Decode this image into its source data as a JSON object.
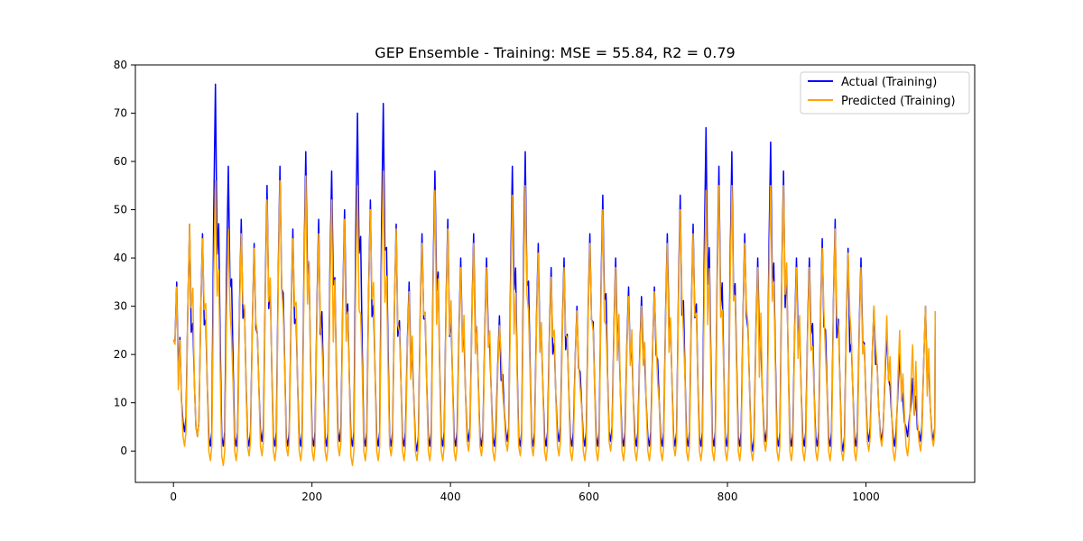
{
  "chart_data": {
    "type": "line",
    "title": "GEP Ensemble - Training: MSE = 55.84, R2 = 0.79",
    "xlabel": "",
    "ylabel": "",
    "xlim": [
      -55,
      1157
    ],
    "ylim": [
      -6.5,
      80
    ],
    "xticks": [
      0,
      200,
      400,
      600,
      800,
      1000
    ],
    "yticks": [
      0,
      10,
      20,
      30,
      40,
      50,
      60,
      70,
      80
    ],
    "grid": false,
    "legend_position": "upper right",
    "cycles": {
      "x_start": 0,
      "x_end": 1100,
      "count": 59,
      "actual_peaks": [
        35,
        47,
        45,
        76,
        59,
        48,
        43,
        55,
        59,
        46,
        62,
        48,
        58,
        50,
        70,
        52,
        72,
        47,
        35,
        45,
        58,
        48,
        40,
        45,
        40,
        28,
        59,
        62,
        43,
        38,
        40,
        30,
        45,
        53,
        40,
        34,
        32,
        34,
        45,
        53,
        47,
        67,
        59,
        62,
        45,
        40,
        64,
        58,
        40,
        40,
        44,
        48,
        42,
        40,
        30,
        25,
        20,
        15,
        30
      ],
      "predicted_peaks": [
        34,
        47,
        44,
        56,
        46,
        45,
        42,
        52,
        56,
        44,
        57,
        45,
        52,
        48,
        55,
        50,
        58,
        46,
        33,
        43,
        54,
        46,
        38,
        43,
        38,
        26,
        53,
        55,
        41,
        36,
        38,
        29,
        43,
        50,
        38,
        32,
        30,
        33,
        43,
        50,
        45,
        54,
        55,
        55,
        43,
        38,
        55,
        55,
        38,
        38,
        42,
        46,
        41,
        38,
        30,
        28,
        25,
        22,
        30
      ],
      "actual_troughs": [
        4,
        3,
        1,
        1,
        1,
        1,
        2,
        1,
        1,
        1,
        1,
        1,
        2,
        1,
        1,
        1,
        1,
        1,
        0,
        1,
        1,
        1,
        2,
        1,
        1,
        2,
        1,
        1,
        1,
        2,
        1,
        1,
        1,
        2,
        1,
        1,
        1,
        1,
        1,
        1,
        1,
        1,
        1,
        1,
        0,
        2,
        1,
        1,
        1,
        1,
        1,
        0,
        1,
        2,
        2,
        1,
        3,
        2,
        2
      ],
      "predicted_troughs": [
        1,
        3,
        -2,
        -3,
        -2,
        -1,
        -1,
        -2,
        -1,
        -2,
        -2,
        -2,
        -1,
        -3,
        -2,
        -2,
        -1,
        -2,
        -2,
        -2,
        -2,
        -2,
        0,
        -1,
        -2,
        0,
        -1,
        -1,
        -2,
        -1,
        -2,
        -2,
        -2,
        0,
        -2,
        -2,
        -2,
        -2,
        -1,
        -2,
        -2,
        -2,
        -2,
        -2,
        -2,
        0,
        -2,
        -2,
        -2,
        -2,
        -2,
        -2,
        -2,
        0,
        1,
        -2,
        -1,
        0,
        1
      ],
      "end_value": 29
    },
    "series": [
      {
        "name": "Actual (Training)",
        "color": "#0000ff"
      },
      {
        "name": "Predicted (Training)",
        "color": "#ffa500"
      }
    ]
  }
}
